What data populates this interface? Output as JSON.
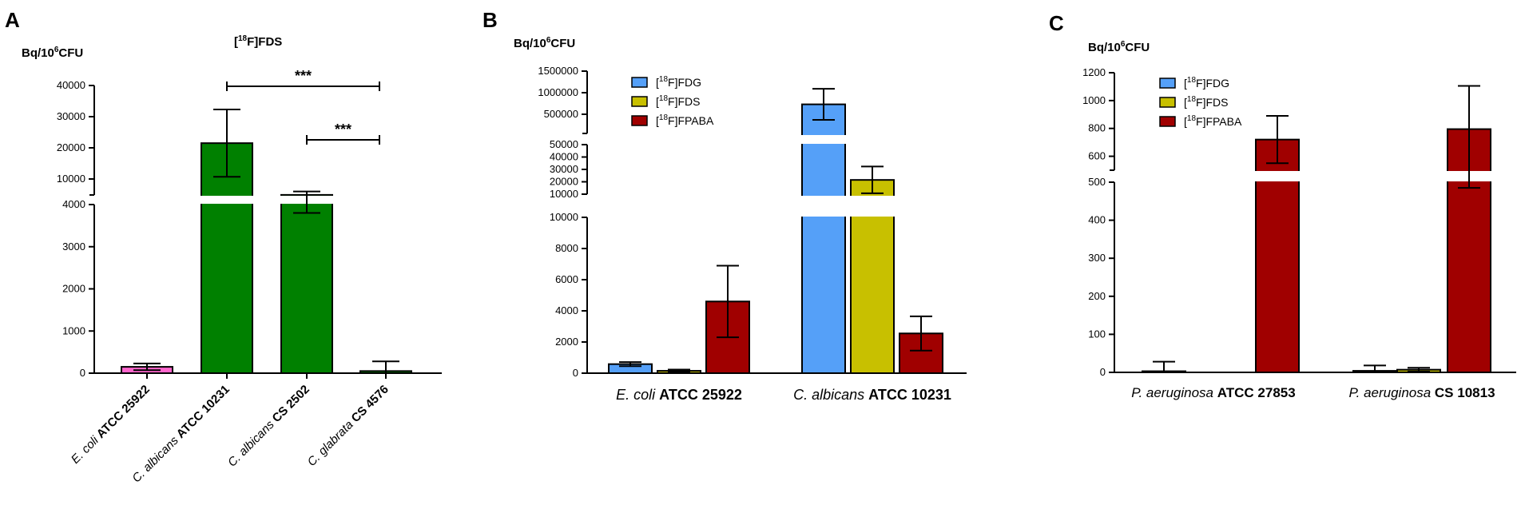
{
  "chart_data": [
    {
      "panel": "A",
      "type": "bar",
      "title": "[18F]FDS",
      "ylabel": "Bq/10⁶CFU",
      "axis_break": {
        "lower": {
          "ylim": [
            0,
            4000
          ],
          "ticks": [
            0,
            1000,
            2000,
            3000,
            4000
          ]
        },
        "upper": {
          "ylim": [
            5000,
            40000
          ],
          "ticks": [
            10000,
            20000,
            30000,
            40000
          ]
        }
      },
      "categories": [
        {
          "italic": "E. coli",
          "bold": "ATCC 25922"
        },
        {
          "italic": "C. albicans",
          "bold": "ATCC 10231"
        },
        {
          "italic": "C. albicans",
          "bold": "CS 2502"
        },
        {
          "italic": "C. glabrata",
          "bold": "CS 4576"
        }
      ],
      "values": [
        150,
        21500,
        4900,
        50
      ],
      "errors": [
        80,
        10800,
        1100,
        230
      ],
      "colors": [
        "#ff66cc",
        "#008000",
        "#008000",
        "#008000"
      ],
      "significance": [
        {
          "from": 1,
          "to": 3,
          "label": "***"
        },
        {
          "from": 2,
          "to": 3,
          "label": "***"
        }
      ]
    },
    {
      "panel": "B",
      "type": "bar",
      "ylabel": "Bq/10⁶CFU",
      "axis_break": {
        "lower": {
          "ylim": [
            0,
            10000
          ],
          "ticks": [
            0,
            2000,
            4000,
            6000,
            8000,
            10000
          ]
        },
        "middle": {
          "ylim": [
            10000,
            50000
          ],
          "ticks": [
            10000,
            20000,
            30000,
            40000,
            50000
          ]
        },
        "upper": {
          "ylim": [
            300000,
            1500000
          ],
          "ticks": [
            500000,
            1000000,
            1500000
          ]
        }
      },
      "categories": [
        {
          "italic": "E. coli",
          "bold": "ATCC 25922"
        },
        {
          "italic": "C. albicans",
          "bold": "ATCC 10231"
        }
      ],
      "legend_position": "top-left",
      "series": [
        {
          "name_sup": "18",
          "name": "F]FDG",
          "color": "#55a0f8",
          "values": [
            580,
            730000
          ],
          "errors": [
            130,
            360000
          ]
        },
        {
          "name_sup": "18",
          "name": "F]FDS",
          "color": "#c8c000",
          "values": [
            150,
            21500
          ],
          "errors": [
            80,
            10800
          ]
        },
        {
          "name_sup": "18",
          "name": "F]FPABA",
          "color": "#a00000",
          "values": [
            4600,
            2550
          ],
          "errors": [
            2300,
            1100
          ]
        }
      ]
    },
    {
      "panel": "C",
      "type": "bar",
      "ylabel": "Bq/10⁶CFU",
      "axis_break": {
        "lower": {
          "ylim": [
            0,
            500
          ],
          "ticks": [
            0,
            100,
            200,
            300,
            400,
            500
          ]
        },
        "upper": {
          "ylim": [
            500,
            1200
          ],
          "ticks": [
            600,
            800,
            1000,
            1200
          ]
        }
      },
      "categories": [
        {
          "italic": "P. aeruginosa",
          "bold": "ATCC 27853"
        },
        {
          "italic": "P. aeruginosa",
          "bold": "CS 10813"
        }
      ],
      "legend_position": "top-left",
      "series": [
        {
          "name_sup": "18",
          "name": "F]FDG",
          "color": "#55a0f8",
          "values": [
            3,
            4
          ],
          "errors": [
            25,
            14
          ]
        },
        {
          "name_sup": "18",
          "name": "F]FDS",
          "color": "#c8c000",
          "values": [
            0,
            7
          ],
          "errors": [
            0,
            5
          ]
        },
        {
          "name_sup": "18",
          "name": "F]FPABA",
          "color": "#a00000",
          "values": [
            720,
            795
          ],
          "errors": [
            170,
            310
          ]
        }
      ]
    }
  ],
  "panels": {
    "a": "A",
    "b": "B",
    "c": "C"
  },
  "ylabel": {
    "base": "Bq/10",
    "sup": "6",
    "unit": "CFU"
  },
  "titleA": {
    "open": "[",
    "sup": "18",
    "rest": "F]FDS"
  }
}
